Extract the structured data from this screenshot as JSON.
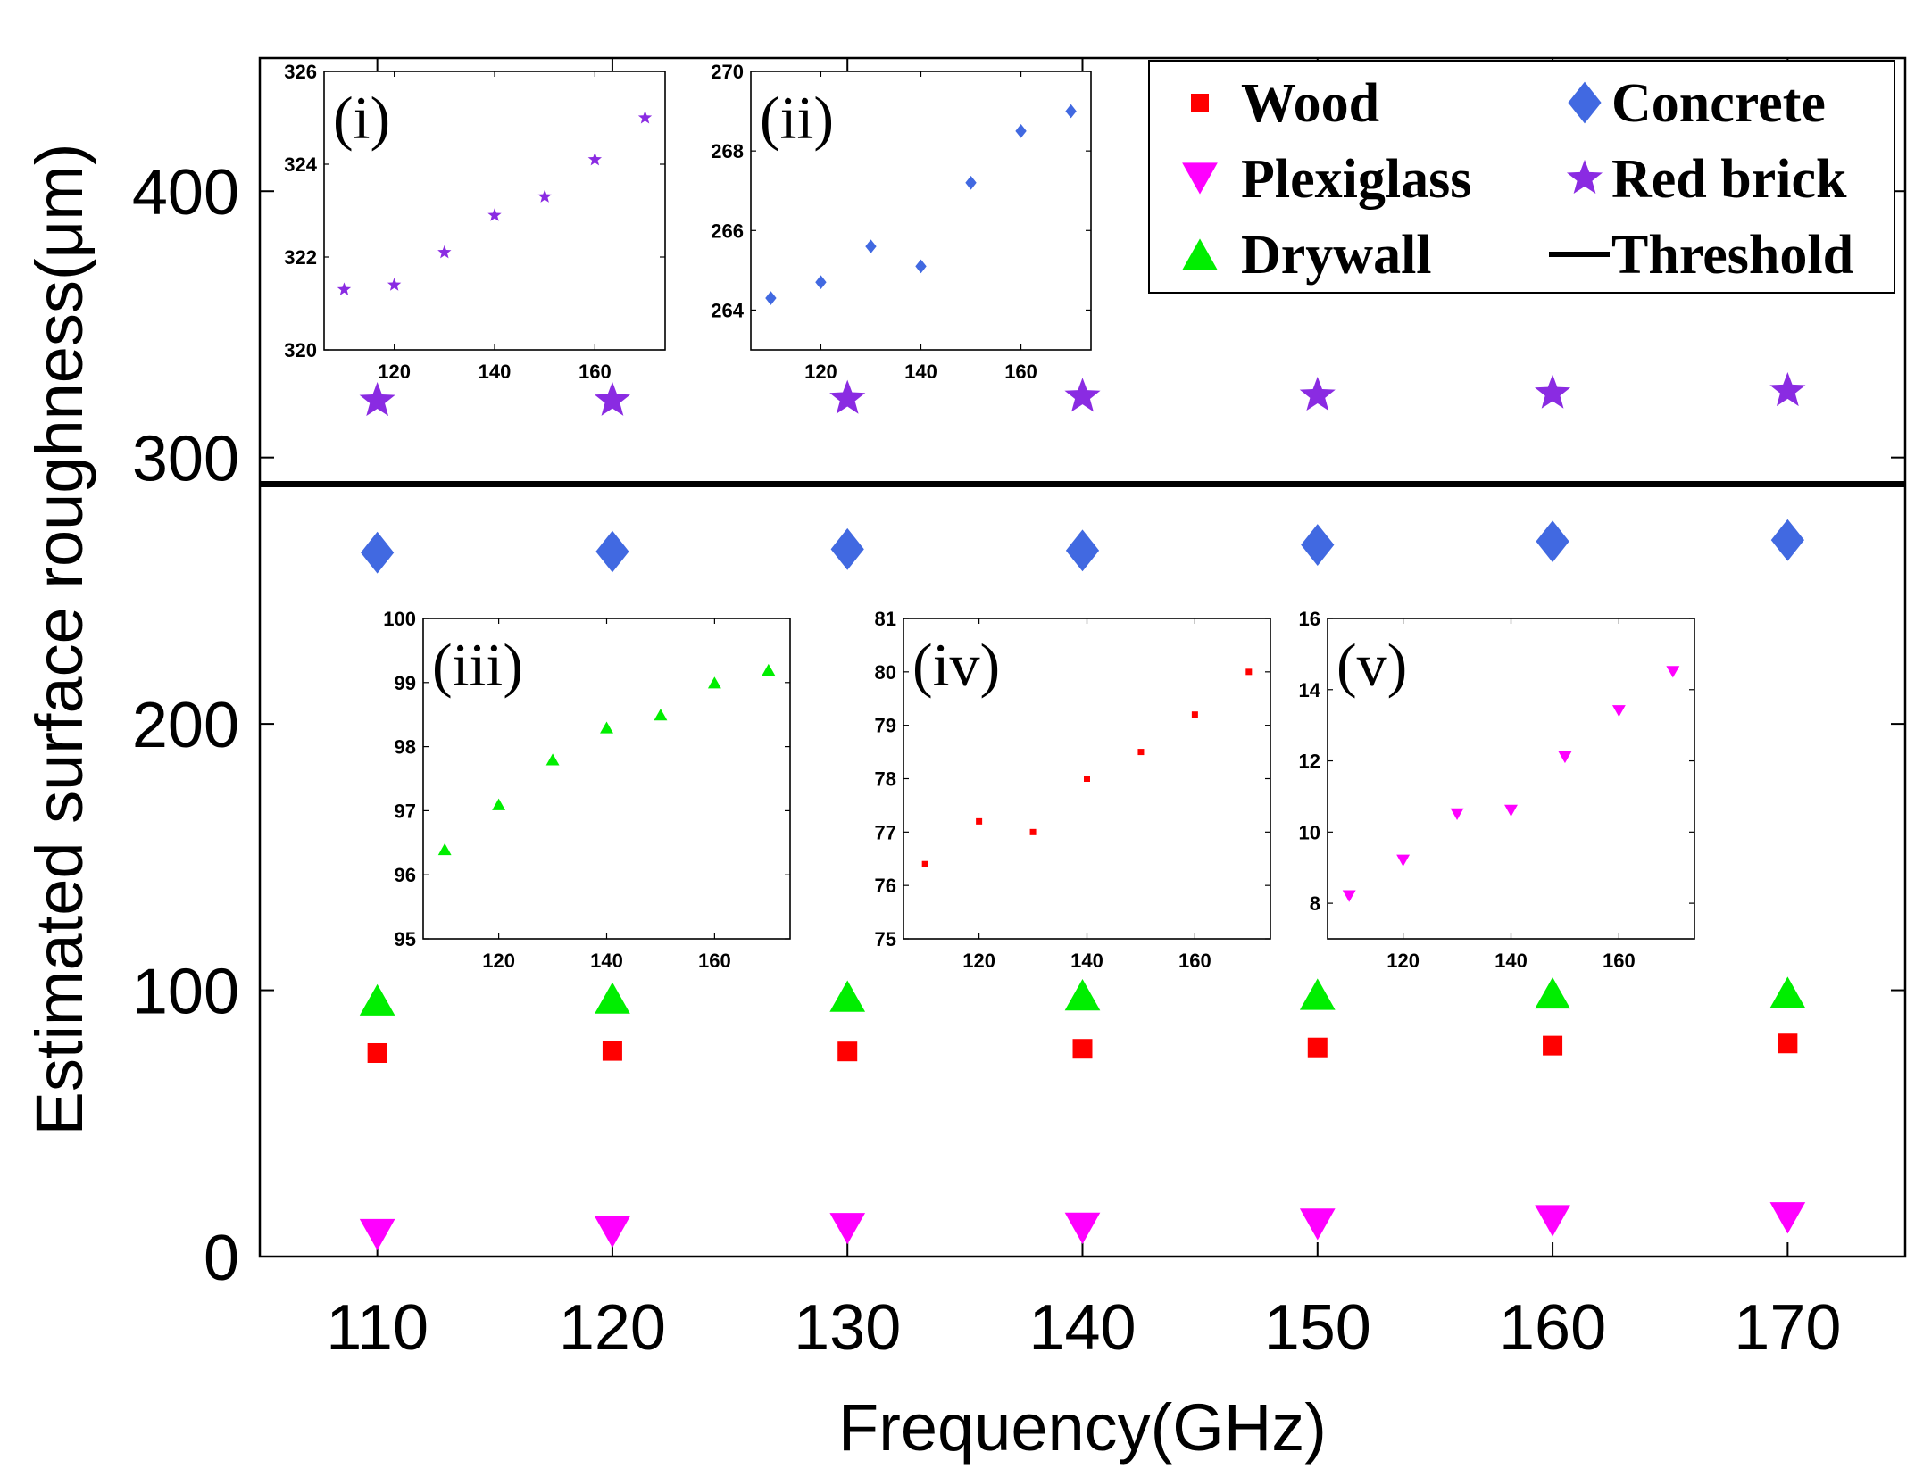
{
  "chart_data": {
    "type": "scatter",
    "xlabel": "Frequency(GHz)",
    "ylabel": "Estimated surface roughness(μm)",
    "x": [
      110,
      120,
      130,
      140,
      150,
      160,
      170
    ],
    "xticks": [
      110,
      120,
      130,
      140,
      150,
      160,
      170
    ],
    "yticks": [
      0,
      100,
      200,
      300,
      400
    ],
    "xlim": [
      105,
      175
    ],
    "ylim": [
      0,
      450
    ],
    "legend_position": "top-right",
    "threshold": {
      "name": "Threshold",
      "value": 290,
      "color": "#000000"
    },
    "series": [
      {
        "name": "Wood",
        "marker": "square",
        "color": "#ff0000",
        "values": [
          76.4,
          77.2,
          77.0,
          78.0,
          78.5,
          79.2,
          80.0
        ]
      },
      {
        "name": "Concrete",
        "marker": "diamond",
        "color": "#4169e1",
        "values": [
          264.3,
          264.7,
          265.6,
          265.1,
          267.2,
          268.5,
          269.0
        ]
      },
      {
        "name": "Plexiglass",
        "marker": "triangle-down",
        "color": "#ff00ff",
        "values": [
          8.2,
          9.2,
          10.5,
          10.6,
          12.1,
          13.4,
          14.5
        ]
      },
      {
        "name": "Red brick",
        "marker": "star",
        "color": "#8a2be2",
        "values": [
          321.3,
          321.4,
          322.1,
          322.9,
          323.3,
          324.1,
          325.0
        ]
      },
      {
        "name": "Drywall",
        "marker": "triangle-up",
        "color": "#00ee00",
        "values": [
          96.4,
          97.1,
          97.8,
          98.3,
          98.5,
          99.0,
          99.2
        ]
      }
    ],
    "legend": {
      "left_column": [
        "Wood",
        "Plexiglass",
        "Drywall"
      ],
      "right_column": [
        "Concrete",
        "Red brick",
        "Threshold"
      ]
    },
    "insets": [
      {
        "label": "(i)",
        "series": "Red brick",
        "ylim": [
          320,
          326
        ],
        "yticks": [
          320,
          322,
          324,
          326
        ],
        "xticks": [
          120,
          140,
          160
        ]
      },
      {
        "label": "(ii)",
        "series": "Concrete",
        "ylim": [
          263,
          270
        ],
        "yticks": [
          264,
          266,
          268,
          270
        ],
        "xticks": [
          120,
          140,
          160
        ]
      },
      {
        "label": "(iii)",
        "series": "Drywall",
        "ylim": [
          95,
          100
        ],
        "yticks": [
          95,
          96,
          97,
          98,
          99,
          100
        ],
        "xticks": [
          120,
          140,
          160
        ]
      },
      {
        "label": "(iv)",
        "series": "Wood",
        "ylim": [
          75,
          81
        ],
        "yticks": [
          75,
          76,
          77,
          78,
          79,
          80,
          81
        ],
        "xticks": [
          120,
          140,
          160
        ]
      },
      {
        "label": "(v)",
        "series": "Plexiglass",
        "ylim": [
          7,
          16
        ],
        "yticks": [
          8,
          10,
          12,
          14,
          16
        ],
        "xticks": [
          120,
          140,
          160
        ]
      }
    ]
  }
}
